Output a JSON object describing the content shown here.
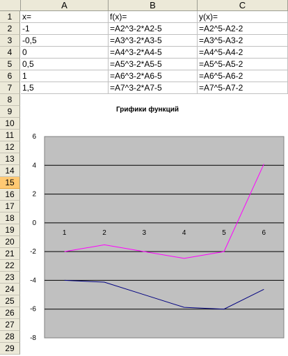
{
  "columns": [
    "A",
    "B",
    "C"
  ],
  "rows": [
    "1",
    "2",
    "3",
    "4",
    "5",
    "6",
    "7",
    "8",
    "9",
    "10",
    "11",
    "12",
    "13",
    "14",
    "15",
    "16",
    "17",
    "18",
    "19",
    "20",
    "21",
    "22",
    "23",
    "24",
    "25",
    "26",
    "27",
    "28",
    "29"
  ],
  "active_row": "15",
  "cells": [
    [
      "x=",
      "f(x)=",
      "y(x)="
    ],
    [
      "-1",
      "=A2^3-2*A2-5",
      "=A2^5-A2-2"
    ],
    [
      "-0,5",
      "=A3^3-2*A3-5",
      "=A3^5-A3-2"
    ],
    [
      "0",
      "=A4^3-2*A4-5",
      "=A4^5-A4-2"
    ],
    [
      "0,5",
      "=A5^3-2*A5-5",
      "=A5^5-A5-2"
    ],
    [
      "1",
      "=A6^3-2*A6-5",
      "=A6^5-A6-2"
    ],
    [
      "1,5",
      "=A7^3-2*A7-5",
      "=A7^5-A7-2"
    ]
  ],
  "chart_data": {
    "type": "line",
    "title": "Грифики функций",
    "categories": [
      "1",
      "2",
      "3",
      "4",
      "5",
      "6"
    ],
    "y_ticks": [
      "6",
      "4",
      "2",
      "0",
      "-2",
      "-4",
      "-6",
      "-8"
    ],
    "ylim": [
      -8,
      6
    ],
    "grid": true,
    "legend": "none",
    "series": [
      {
        "values": [
          -4,
          -4.125,
          -5,
          -5.875,
          -6,
          -4.625
        ],
        "color": "#000080"
      },
      {
        "values": [
          -2,
          -1.53,
          -2,
          -2.47,
          -2,
          4.09
        ],
        "color": "#ff00ff"
      }
    ],
    "plot_background": "#c0c0c0"
  }
}
